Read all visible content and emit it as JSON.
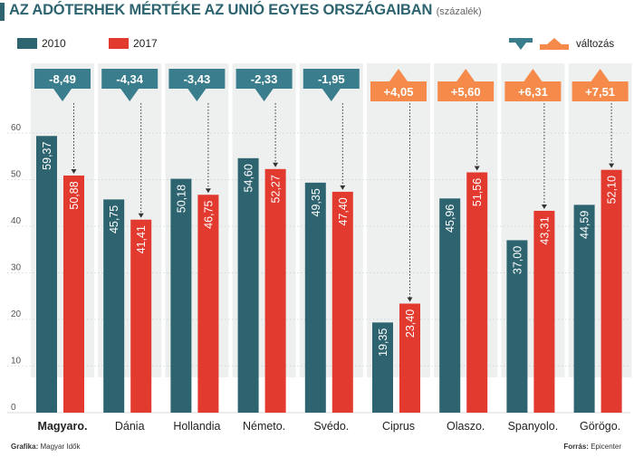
{
  "title": "AZ ADÓTERHEK MÉRTÉKE AZ UNIÓ EGYES ORSZÁGAIBAN",
  "subtitle": "(százalék)",
  "footer": {
    "left_label": "Grafika:",
    "left_value": "Magyar Idők",
    "right_label": "Forrás:",
    "right_value": "Epicenter"
  },
  "colors": {
    "series_2010": "#2e6470",
    "series_2017": "#e23a2f",
    "decrease": "#3a7d8c",
    "increase": "#f58a4a",
    "panel": "#eef0f0"
  },
  "chart_data": {
    "type": "bar",
    "categories": [
      "Magyaro.",
      "Dánia",
      "Hollandia",
      "Németo.",
      "Svédo.",
      "Ciprus",
      "Olaszo.",
      "Spanyolo.",
      "Görögo."
    ],
    "series": [
      {
        "name": "2010",
        "values": [
          59.37,
          45.75,
          50.18,
          54.6,
          49.35,
          19.35,
          45.96,
          37.0,
          44.59
        ],
        "labels": [
          "59,37",
          "45,75",
          "50,18",
          "54,60",
          "49,35",
          "19,35",
          "45,96",
          "37,00",
          "44,59"
        ]
      },
      {
        "name": "2017",
        "values": [
          50.88,
          41.41,
          46.75,
          52.27,
          47.4,
          23.4,
          51.56,
          43.31,
          52.1
        ],
        "labels": [
          "50,88",
          "41,41",
          "46,75",
          "52,27",
          "47,40",
          "23,40",
          "51,56",
          "43,31",
          "52,10"
        ]
      }
    ],
    "change": {
      "name": "változás",
      "values": [
        -8.49,
        -4.34,
        -3.43,
        -2.33,
        -1.95,
        4.05,
        5.6,
        6.31,
        7.51
      ],
      "labels": [
        "-8,49",
        "-4,34",
        "-3,43",
        "-2,33",
        "-1,95",
        "+4,05",
        "+5,60",
        "+6,31",
        "+7,51"
      ]
    },
    "ylim": [
      0,
      60
    ],
    "yticks": [
      0,
      10,
      20,
      30,
      40,
      50,
      60
    ],
    "grid": true,
    "legend": "top",
    "highlight_category": "Magyaro."
  }
}
